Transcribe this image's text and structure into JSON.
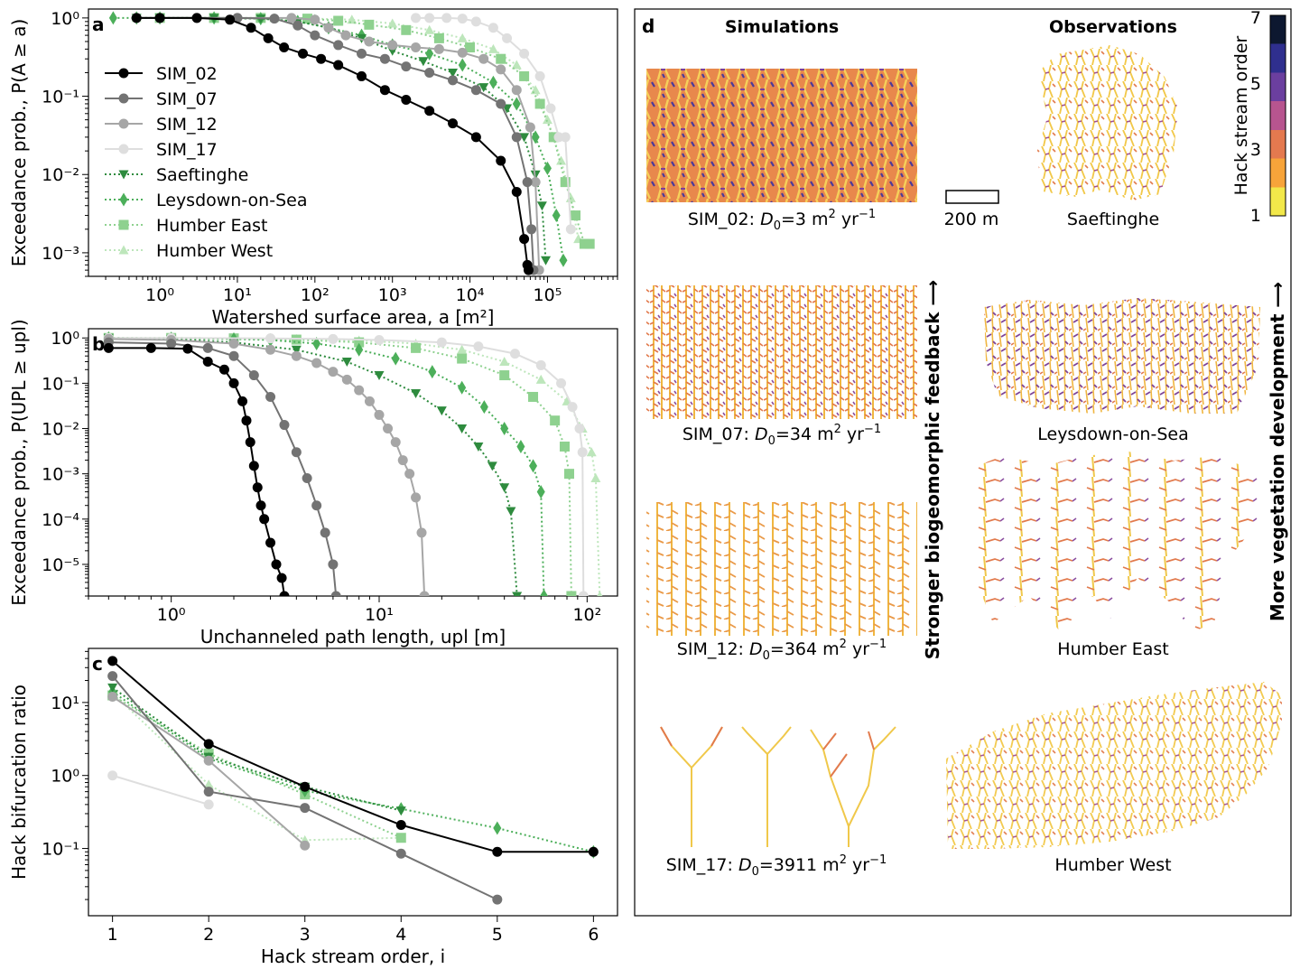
{
  "colors": {
    "SIM_02": "#000000",
    "SIM_07": "#737373",
    "SIM_12": "#a6a6a6",
    "SIM_17": "#dedede",
    "Saeftinghe": "#2e8b3e",
    "Leysdown-on-Sea": "#4caf5a",
    "Humber East": "#8ed18f",
    "Humber West": "#bde6bb",
    "hack_colormap": [
      "#f2e84a",
      "#f7a43a",
      "#e4794f",
      "#b7558f",
      "#6b3f9f",
      "#2f2f8e",
      "#0d1830"
    ]
  },
  "chart_data": [
    {
      "panel": "a",
      "type": "line",
      "xscale": "log",
      "yscale": "log",
      "xlabel": "Watershed surface area, a [m²]",
      "ylabel": "Exceedance prob., P(A ≥ a)",
      "xlim": [
        0.12,
        800000
      ],
      "ylim": [
        0.0005,
        1.3
      ],
      "xticks": [
        "10⁰",
        "10¹",
        "10²",
        "10³",
        "10⁴",
        "10⁵"
      ],
      "yticks": [
        "10⁰",
        "10⁻¹",
        "10⁻²",
        "10⁻³"
      ],
      "legend_position": "upper-left",
      "series": [
        {
          "name": "SIM_02",
          "style": "solid",
          "marker": "circle",
          "color_key": "SIM_02",
          "x": [
            0.5,
            1,
            3,
            8,
            15,
            25,
            40,
            70,
            120,
            200,
            400,
            800,
            1500,
            3000,
            6000,
            12000,
            25000,
            40000,
            50000,
            55000,
            57000
          ],
          "y": [
            1,
            1,
            1,
            0.95,
            0.75,
            0.55,
            0.42,
            0.35,
            0.3,
            0.25,
            0.18,
            0.12,
            0.09,
            0.065,
            0.045,
            0.03,
            0.015,
            0.006,
            0.0015,
            0.0007,
            0.0006
          ]
        },
        {
          "name": "SIM_07",
          "style": "solid",
          "marker": "circle",
          "color_key": "SIM_07",
          "x": [
            0.5,
            1,
            3,
            10,
            30,
            60,
            100,
            200,
            400,
            800,
            1500,
            3000,
            6000,
            12000,
            25000,
            40000,
            55000,
            62000,
            66000
          ],
          "y": [
            1,
            1,
            1,
            1,
            0.98,
            0.8,
            0.6,
            0.45,
            0.35,
            0.3,
            0.24,
            0.2,
            0.16,
            0.12,
            0.08,
            0.03,
            0.008,
            0.002,
            0.0006
          ]
        },
        {
          "name": "SIM_12",
          "style": "solid",
          "marker": "circle",
          "color_key": "SIM_12",
          "x": [
            0.5,
            1,
            10,
            50,
            100,
            150,
            250,
            500,
            1000,
            2000,
            4000,
            8000,
            15000,
            25000,
            40000,
            60000,
            70000,
            78000
          ],
          "y": [
            1,
            1,
            1,
            1,
            0.95,
            0.75,
            0.6,
            0.5,
            0.45,
            0.42,
            0.4,
            0.36,
            0.3,
            0.22,
            0.12,
            0.04,
            0.008,
            0.0006
          ]
        },
        {
          "name": "SIM_17",
          "style": "solid",
          "marker": "circle",
          "color_key": "SIM_17",
          "x": [
            2000,
            3000,
            5000,
            8000,
            12000,
            20000,
            30000,
            50000,
            80000,
            110000,
            140000,
            170000,
            200000
          ],
          "y": [
            1,
            1,
            1,
            0.98,
            0.9,
            0.75,
            0.55,
            0.35,
            0.18,
            0.07,
            0.03,
            0.03,
            0.002
          ]
        },
        {
          "name": "Saeftinghe",
          "style": "dotted",
          "marker": "triangle-down",
          "color_key": "Saeftinghe",
          "x": [
            0.5,
            1,
            5,
            20,
            60,
            150,
            400,
            1000,
            2500,
            6000,
            15000,
            30000,
            50000,
            70000,
            85000,
            95000
          ],
          "y": [
            1,
            1,
            1,
            0.98,
            0.9,
            0.75,
            0.55,
            0.38,
            0.28,
            0.2,
            0.13,
            0.07,
            0.03,
            0.01,
            0.004,
            0.0008
          ]
        },
        {
          "name": "Leysdown-on-Sea",
          "style": "dotted",
          "marker": "diamond",
          "color_key": "Leysdown-on-Sea",
          "x": [
            0.25,
            0.5,
            1,
            5,
            20,
            60,
            150,
            400,
            1000,
            3000,
            8000,
            20000,
            40000,
            70000,
            100000,
            130000,
            160000
          ],
          "y": [
            1,
            1,
            1,
            1,
            0.98,
            0.9,
            0.75,
            0.6,
            0.45,
            0.35,
            0.25,
            0.15,
            0.08,
            0.03,
            0.012,
            0.003,
            0.0008
          ]
        },
        {
          "name": "Humber East",
          "style": "dotted",
          "marker": "square",
          "color_key": "Humber East",
          "x": [
            1,
            5,
            20,
            80,
            200,
            500,
            1500,
            4000,
            10000,
            25000,
            50000,
            80000,
            120000,
            170000,
            230000,
            300000,
            350000
          ],
          "y": [
            1,
            1,
            1,
            0.98,
            0.92,
            0.82,
            0.7,
            0.55,
            0.42,
            0.3,
            0.18,
            0.08,
            0.03,
            0.008,
            0.003,
            0.0013,
            0.0013
          ]
        },
        {
          "name": "Humber West",
          "style": "dotted",
          "marker": "triangle-up",
          "color_key": "Humber West",
          "x": [
            0.5,
            1,
            5,
            30,
            100,
            300,
            1000,
            3000,
            8000,
            20000,
            40000,
            70000,
            100000,
            150000,
            200000,
            250000
          ],
          "y": [
            1,
            1,
            1,
            1,
            0.98,
            0.95,
            0.85,
            0.7,
            0.55,
            0.4,
            0.25,
            0.12,
            0.05,
            0.015,
            0.005,
            0.0015
          ]
        }
      ]
    },
    {
      "panel": "b",
      "type": "line",
      "xscale": "log",
      "yscale": "log",
      "xlabel": "Unchanneled path length, upl [m]",
      "ylabel": "Exceedance prob., P(UPL ≥ upl)",
      "xlim": [
        0.4,
        140
      ],
      "ylim": [
        2e-06,
        1.6
      ],
      "xticks": [
        "10⁰",
        "10¹",
        "10²"
      ],
      "yticks": [
        "10⁰",
        "10⁻¹",
        "10⁻²",
        "10⁻³",
        "10⁻⁴",
        "10⁻⁵"
      ],
      "series": [
        {
          "name": "SIM_02",
          "style": "solid",
          "marker": "circle",
          "color_key": "SIM_02",
          "x": [
            0.5,
            0.8,
            1.2,
            1.5,
            1.8,
            2.0,
            2.2,
            2.3,
            2.4,
            2.5,
            2.6,
            2.7,
            2.8,
            3.0,
            3.2,
            3.4,
            3.5
          ],
          "y": [
            0.6,
            0.6,
            0.58,
            0.3,
            0.2,
            0.1,
            0.04,
            0.015,
            0.005,
            0.0015,
            0.0005,
            0.0002,
            0.0001,
            3e-05,
            1e-05,
            5e-06,
            2e-06
          ]
        },
        {
          "name": "SIM_07",
          "style": "solid",
          "marker": "circle",
          "color_key": "SIM_07",
          "x": [
            0.5,
            1,
            1.5,
            2,
            2.5,
            3,
            3.5,
            4,
            4.5,
            5,
            5.5,
            6,
            6.2
          ],
          "y": [
            0.8,
            0.75,
            0.6,
            0.4,
            0.15,
            0.05,
            0.012,
            0.003,
            0.0008,
            0.0002,
            5e-05,
            1e-05,
            2e-06
          ]
        },
        {
          "name": "SIM_12",
          "style": "solid",
          "marker": "circle",
          "color_key": "SIM_12",
          "x": [
            0.5,
            1,
            2,
            3,
            4,
            5,
            6,
            7,
            8,
            9,
            10,
            11,
            12,
            13,
            14,
            15,
            16,
            16.5
          ],
          "y": [
            0.95,
            0.9,
            0.75,
            0.55,
            0.4,
            0.28,
            0.18,
            0.12,
            0.07,
            0.04,
            0.02,
            0.01,
            0.005,
            0.002,
            0.001,
            0.0003,
            5e-05,
            2e-06
          ]
        },
        {
          "name": "SIM_17",
          "style": "solid",
          "marker": "circle",
          "color_key": "SIM_17",
          "x": [
            0.5,
            1,
            3,
            6,
            10,
            20,
            30,
            45,
            60,
            75,
            85,
            92,
            95,
            96
          ],
          "y": [
            1,
            1,
            0.98,
            0.95,
            0.9,
            0.8,
            0.65,
            0.45,
            0.25,
            0.1,
            0.03,
            0.01,
            0.003,
            2e-06
          ]
        },
        {
          "name": "Saeftinghe",
          "style": "dotted",
          "marker": "triangle-down",
          "color_key": "Saeftinghe",
          "x": [
            0.5,
            1,
            2,
            4,
            7,
            10,
            15,
            20,
            25,
            30,
            35,
            40,
            43,
            46
          ],
          "y": [
            1,
            0.95,
            0.8,
            0.55,
            0.3,
            0.15,
            0.06,
            0.025,
            0.01,
            0.004,
            0.0015,
            0.0005,
            0.00015,
            2e-06
          ]
        },
        {
          "name": "Leysdown-on-Sea",
          "style": "dotted",
          "marker": "diamond",
          "color_key": "Leysdown-on-Sea",
          "x": [
            0.5,
            1,
            2,
            3,
            5,
            8,
            12,
            18,
            25,
            32,
            40,
            48,
            55,
            60,
            62
          ],
          "y": [
            1,
            0.98,
            0.95,
            0.9,
            0.75,
            0.55,
            0.35,
            0.18,
            0.08,
            0.03,
            0.01,
            0.004,
            0.0015,
            0.0004,
            2e-06
          ]
        },
        {
          "name": "Humber East",
          "style": "dotted",
          "marker": "square",
          "color_key": "Humber East",
          "x": [
            0.5,
            1,
            2,
            4,
            8,
            15,
            25,
            40,
            55,
            70,
            78,
            82,
            84
          ],
          "y": [
            1,
            1,
            0.98,
            0.92,
            0.8,
            0.6,
            0.35,
            0.15,
            0.05,
            0.015,
            0.004,
            0.001,
            2e-06
          ]
        },
        {
          "name": "Humber West",
          "style": "dotted",
          "marker": "triangle-up",
          "color_key": "Humber West",
          "x": [
            0.5,
            1,
            2,
            4,
            8,
            15,
            25,
            40,
            60,
            80,
            95,
            105,
            110,
            115
          ],
          "y": [
            1,
            1,
            0.98,
            0.95,
            0.88,
            0.75,
            0.55,
            0.3,
            0.12,
            0.04,
            0.01,
            0.003,
            0.0008,
            2e-06
          ]
        }
      ]
    },
    {
      "panel": "c",
      "type": "line",
      "xscale": "linear",
      "yscale": "log",
      "xlabel": "Hack stream order, i",
      "ylabel": "Hack bifurcation ratio",
      "xlim": [
        0.75,
        6.25
      ],
      "ylim": [
        0.012,
        55
      ],
      "xticks": [
        "1",
        "2",
        "3",
        "4",
        "5",
        "6"
      ],
      "yticks": [
        "10¹",
        "10⁰",
        "10⁻¹"
      ],
      "series": [
        {
          "name": "SIM_02",
          "style": "solid",
          "marker": "circle",
          "color_key": "SIM_02",
          "x": [
            1,
            2,
            3,
            4,
            5,
            6
          ],
          "y": [
            37,
            2.7,
            0.7,
            0.21,
            0.09,
            0.09
          ]
        },
        {
          "name": "SIM_07",
          "style": "solid",
          "marker": "circle",
          "color_key": "SIM_07",
          "x": [
            1,
            2,
            3,
            4,
            5
          ],
          "y": [
            23,
            0.6,
            0.36,
            0.085,
            0.02
          ]
        },
        {
          "name": "SIM_12",
          "style": "solid",
          "marker": "circle",
          "color_key": "SIM_12",
          "x": [
            1,
            2,
            3
          ],
          "y": [
            12,
            1.6,
            0.11
          ]
        },
        {
          "name": "SIM_17",
          "style": "solid",
          "marker": "circle",
          "color_key": "SIM_17",
          "x": [
            1,
            2
          ],
          "y": [
            1.0,
            0.4
          ]
        },
        {
          "name": "Saeftinghe",
          "style": "dotted",
          "marker": "triangle-down",
          "color_key": "Saeftinghe",
          "x": [
            1,
            2,
            3,
            4
          ],
          "y": [
            16,
            1.8,
            0.7,
            0.33
          ]
        },
        {
          "name": "Leysdown-on-Sea",
          "style": "dotted",
          "marker": "diamond",
          "color_key": "Leysdown-on-Sea",
          "x": [
            1,
            2,
            3,
            4,
            5,
            6
          ],
          "y": [
            14,
            1.7,
            0.62,
            0.35,
            0.19,
            0.09
          ]
        },
        {
          "name": "Humber East",
          "style": "dotted",
          "marker": "square",
          "color_key": "Humber East",
          "x": [
            1,
            2,
            3,
            4
          ],
          "y": [
            12.5,
            2.0,
            0.55,
            0.14
          ]
        },
        {
          "name": "Humber West",
          "style": "dotted",
          "marker": "triangle-up",
          "color_key": "Humber West",
          "x": [
            1,
            2,
            3,
            4
          ],
          "y": [
            13.5,
            0.75,
            0.13,
            0.14
          ]
        }
      ]
    }
  ],
  "panel_labels": {
    "a": "a",
    "b": "b",
    "c": "c",
    "d": "d"
  },
  "legend": [
    "SIM_02",
    "SIM_07",
    "SIM_12",
    "SIM_17",
    "Saeftinghe",
    "Leysdown-on-Sea",
    "Humber East",
    "Humber West"
  ],
  "panel_d": {
    "col_headers": {
      "sim": "Simulations",
      "obs": "Observations"
    },
    "sim_captions": [
      {
        "pre": "SIM_02: ",
        "var": "D",
        "sub": "0",
        "mid": "=3 m",
        "sup": "2",
        "post": " yr",
        "sup2": "−1"
      },
      {
        "pre": "SIM_07: ",
        "var": "D",
        "sub": "0",
        "mid": "=34 m",
        "sup": "2",
        "post": " yr",
        "sup2": "−1"
      },
      {
        "pre": "SIM_12: ",
        "var": "D",
        "sub": "0",
        "mid": "=364 m",
        "sup": "2",
        "post": " yr",
        "sup2": "−1"
      },
      {
        "pre": "SIM_17: ",
        "var": "D",
        "sub": "0",
        "mid": "=3911 m",
        "sup": "2",
        "post": " yr",
        "sup2": "−1"
      }
    ],
    "obs_captions": [
      "Saeftinghe",
      "Leysdown-on-Sea",
      "Humber East",
      "Humber West"
    ],
    "scale_bar": "200 m",
    "arrow_sim": "Stronger biogeomorphic feedback ⟶",
    "arrow_obs": "More vegetation development ⟶",
    "colorbar_label": "Hack stream order",
    "colorbar_ticks": [
      "1",
      "3",
      "5",
      "7"
    ]
  }
}
